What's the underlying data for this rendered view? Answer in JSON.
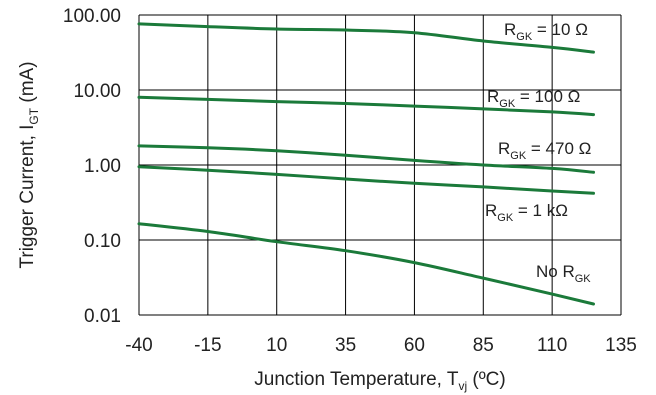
{
  "colors": {
    "series": "#1b7a3a",
    "grid": "#000000",
    "text": "#222222",
    "background": "#ffffff"
  },
  "chart_data": {
    "type": "line",
    "xlabel": {
      "main": "Junction Temperature, T",
      "sub": "vj",
      "suffix": " (ºC)"
    },
    "ylabel": {
      "main": "Trigger Current, I",
      "sub": "GT",
      "suffix": " (mA)"
    },
    "xlim": [
      -40,
      135
    ],
    "ylim": [
      0.01,
      100
    ],
    "yscale": "log",
    "grid": true,
    "x_ticks": [
      -40,
      -15,
      10,
      35,
      60,
      85,
      110,
      135
    ],
    "x_tick_labels": [
      "-40",
      "-15",
      "10",
      "35",
      "60",
      "85",
      "110",
      "135"
    ],
    "y_ticks": [
      0.01,
      0.1,
      1,
      10,
      100
    ],
    "y_tick_labels": [
      "0.01",
      "0.10",
      "1.00",
      "10.00",
      "100.00"
    ],
    "series": [
      {
        "label": {
          "main": "R",
          "sub": "GK",
          "suffix": " = 10 Ω"
        },
        "x": [
          -40,
          -15,
          10,
          35,
          60,
          85,
          110,
          125
        ],
        "y": [
          76,
          70,
          65,
          63,
          58,
          45,
          37,
          32
        ]
      },
      {
        "label": {
          "main": "R",
          "sub": "GK",
          "suffix": " = 100 Ω"
        },
        "x": [
          -40,
          -15,
          10,
          35,
          60,
          85,
          110,
          125
        ],
        "y": [
          8.0,
          7.5,
          7.0,
          6.6,
          6.1,
          5.6,
          5.1,
          4.7
        ]
      },
      {
        "label": {
          "main": "R",
          "sub": "GK",
          "suffix": " = 470 Ω"
        },
        "x": [
          -40,
          -15,
          10,
          35,
          60,
          85,
          110,
          125
        ],
        "y": [
          1.8,
          1.7,
          1.55,
          1.35,
          1.15,
          1.0,
          0.9,
          0.8
        ]
      },
      {
        "label": {
          "main": "R",
          "sub": "GK",
          "suffix": " = 1 kΩ"
        },
        "x": [
          -40,
          -15,
          10,
          35,
          60,
          85,
          110,
          125
        ],
        "y": [
          0.95,
          0.85,
          0.75,
          0.65,
          0.57,
          0.51,
          0.45,
          0.42
        ]
      },
      {
        "label": {
          "main": "No R",
          "sub": "GK",
          "suffix": ""
        },
        "x": [
          -40,
          -15,
          10,
          35,
          60,
          85,
          110,
          125
        ],
        "y": [
          0.165,
          0.13,
          0.095,
          0.072,
          0.05,
          0.031,
          0.019,
          0.014
        ]
      }
    ]
  }
}
